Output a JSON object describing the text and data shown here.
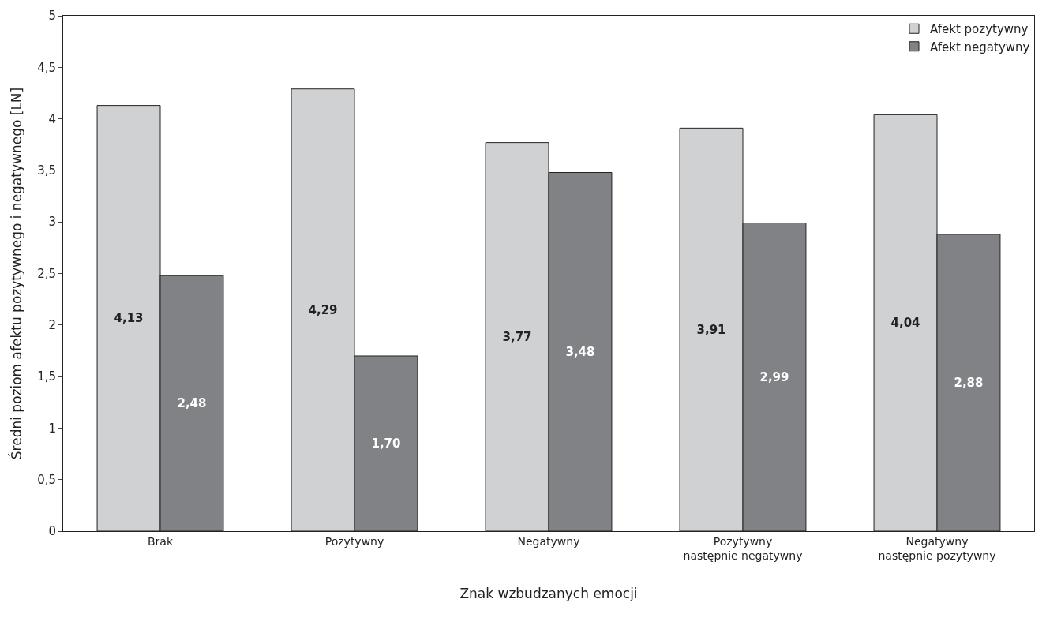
{
  "chart_data": {
    "type": "bar",
    "xlabel": "Znak wzbudzanych emocji",
    "ylabel": "Średni poziom afektu pozytywnego i negatywnego [LN]",
    "categories": [
      "Brak",
      "Pozytywny",
      "Negatywny",
      "Pozytywny\nnastępnie negatywny",
      "Negatywny\nnastępnie pozytywny"
    ],
    "series": [
      {
        "name": "Afekt pozytywny",
        "color": "#d0d1d3",
        "values": [
          4.13,
          4.29,
          3.77,
          3.91,
          4.04
        ],
        "value_labels": [
          "4,13",
          "4,29",
          "3,77",
          "3,91",
          "4,04"
        ]
      },
      {
        "name": "Afekt negatywny",
        "color": "#808285",
        "values": [
          2.48,
          1.7,
          3.48,
          2.99,
          2.88
        ],
        "value_labels": [
          "2,48",
          "1,70",
          "3,48",
          "2,99",
          "2,88"
        ]
      }
    ],
    "ylim": [
      0,
      5
    ],
    "yticks": [
      0,
      {
        "value": 0.5,
        "label": "0,5"
      },
      1,
      {
        "value": 1.5,
        "label": "1,5"
      },
      2,
      {
        "value": 2.5,
        "label": "2,5"
      },
      3,
      {
        "value": 3.5,
        "label": "3,5"
      },
      4,
      {
        "value": 4.5,
        "label": "4,5"
      },
      5
    ],
    "legend": "top right"
  }
}
